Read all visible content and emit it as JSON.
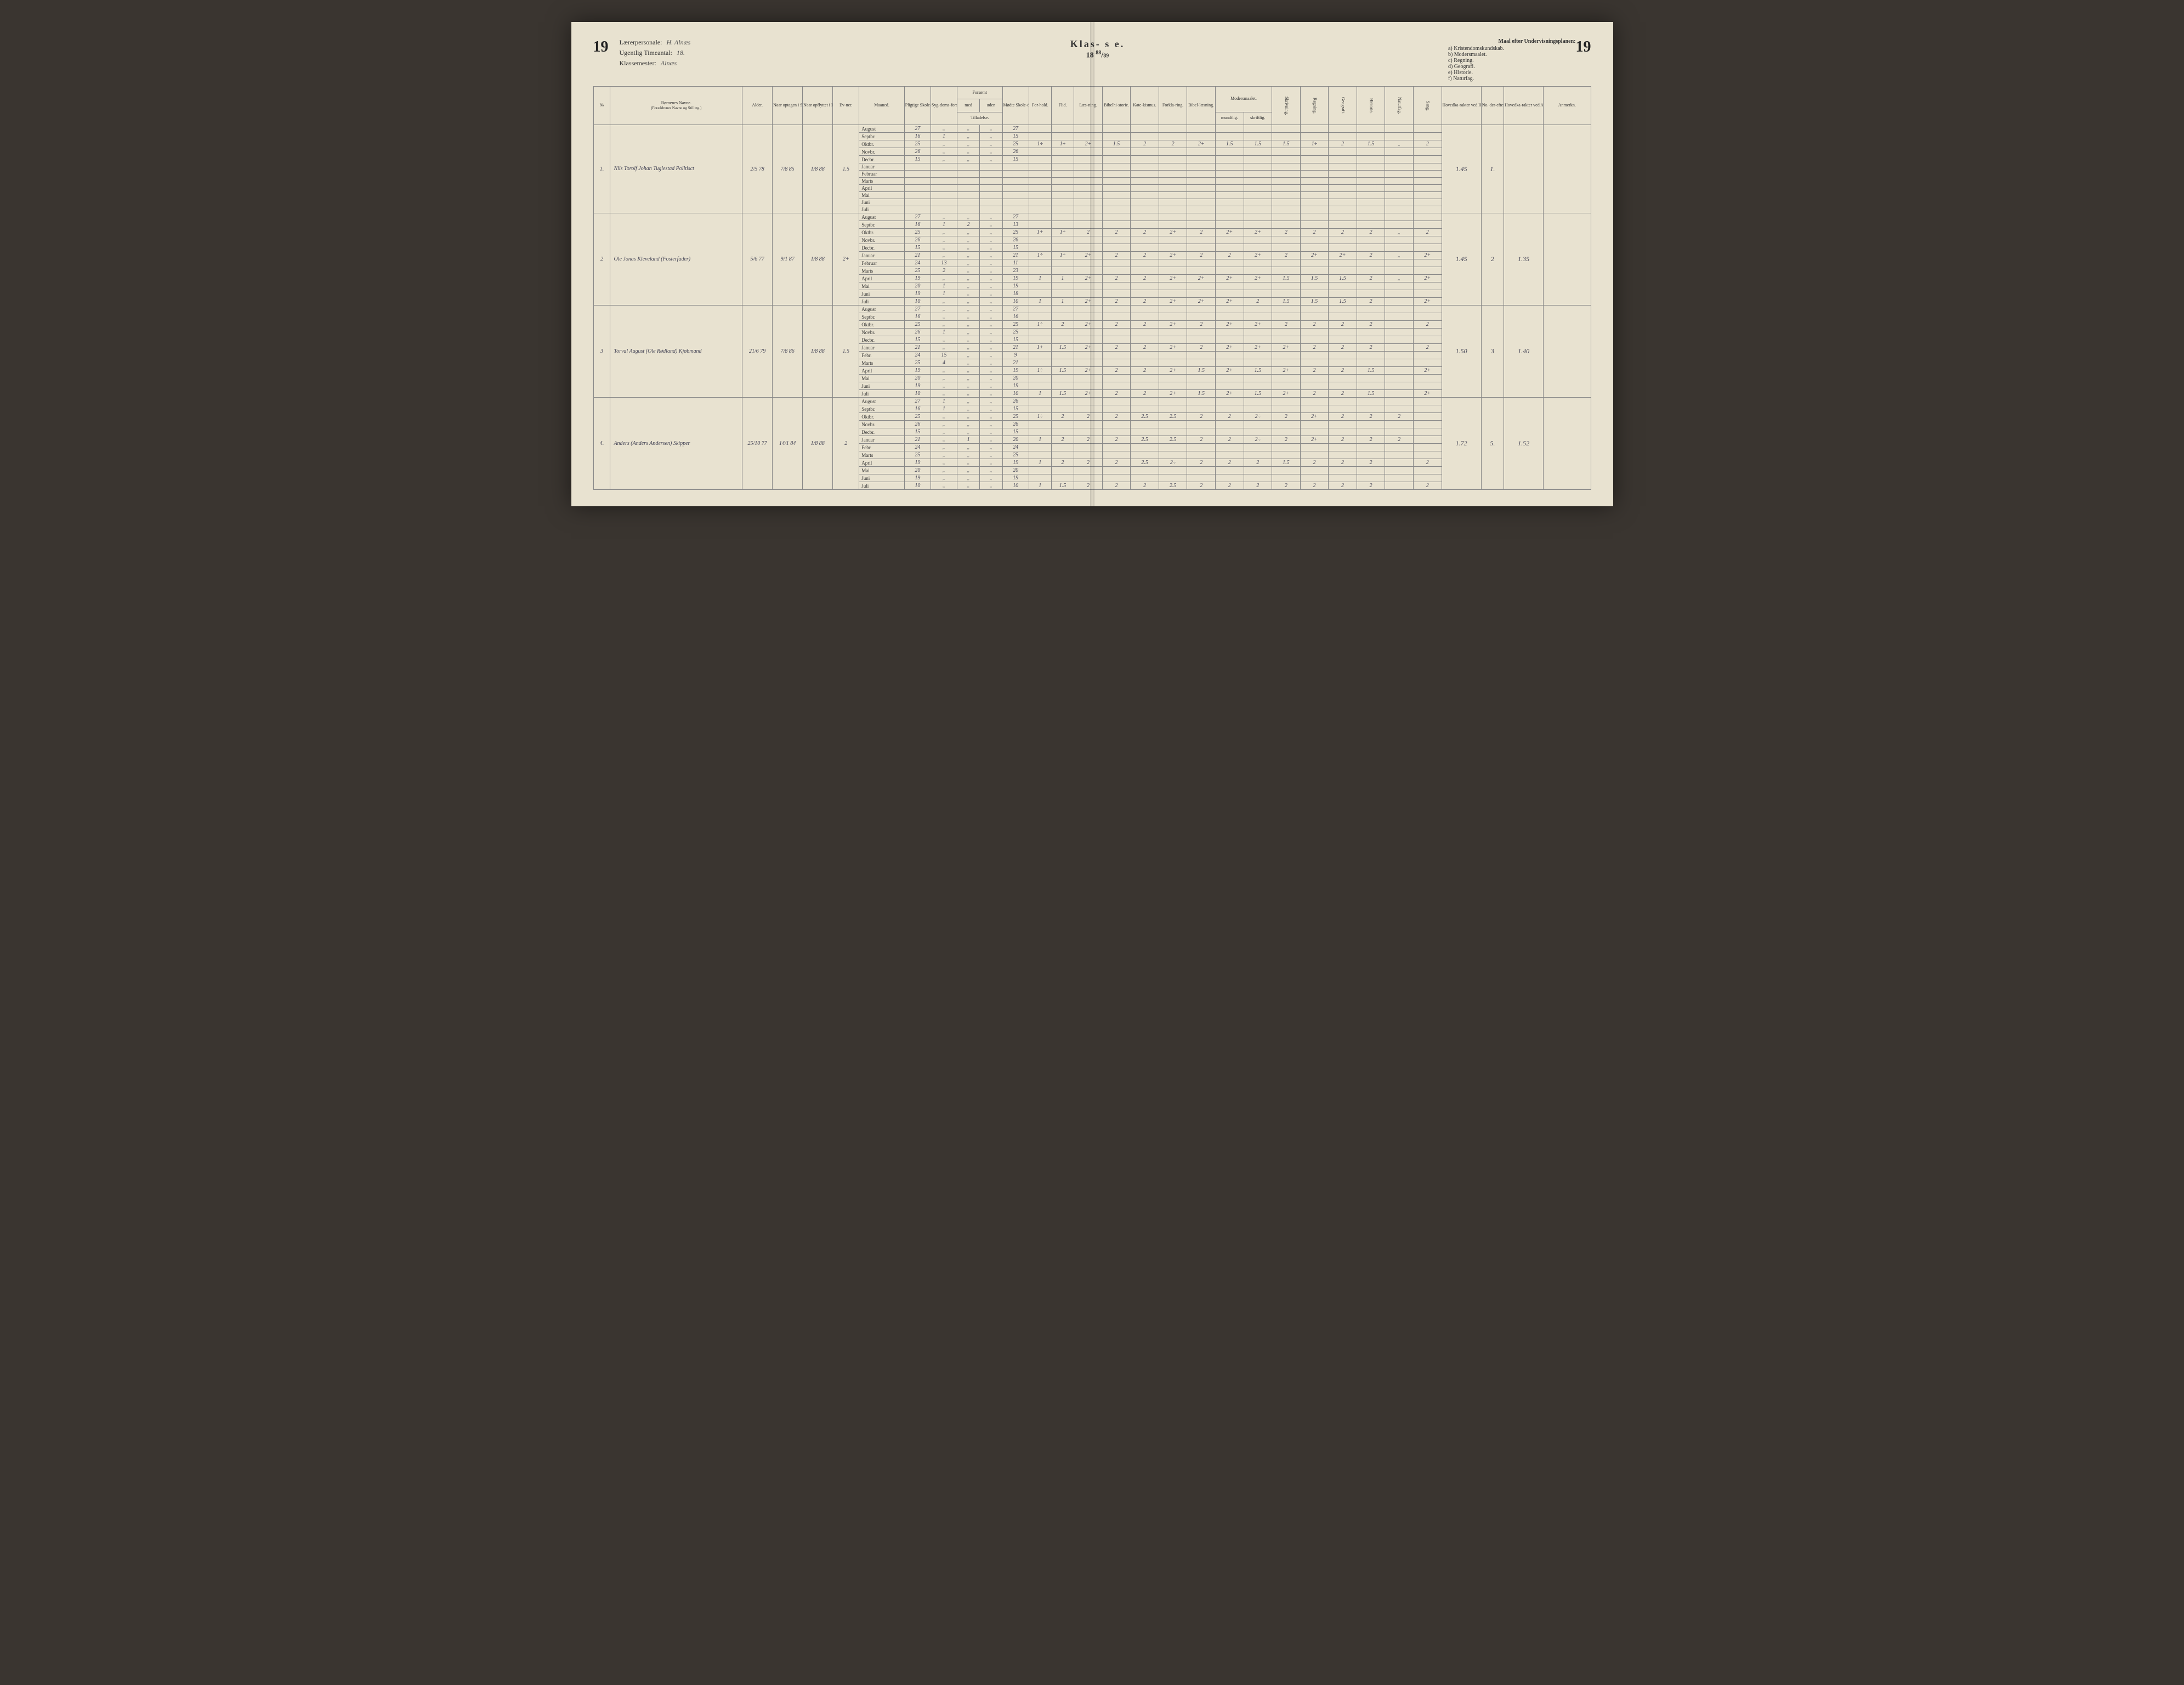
{
  "page_number_left": "19",
  "page_number_right": "19",
  "teacher_label": "Lærerpersonale:",
  "teacher_value": "H. Alnæs",
  "hours_label": "Ugentlig Timeantal:",
  "hours_value": "18.",
  "master_label": "Klassemester:",
  "master_value": "Alnæs",
  "klasse_label": "Klas-    s e.",
  "year_prefix": "18",
  "year_frac_top": "88",
  "year_frac_bot": "89",
  "maal_title": "Maal efter Undervisningsplanen:",
  "maal_items": [
    "a) Kristendomskundskab.",
    "b) Modersmaalet.",
    "c) Regning.",
    "d) Geografi.",
    "e) Historie.",
    "f) Naturfag."
  ],
  "headers": {
    "no": "№",
    "name": "Børnenes Navne.",
    "name_sub": "(Forældrenes Navne og Stilling.)",
    "alder": "Alder.",
    "naar1": "Naar optagen i Skolen.",
    "naar2": "Naar opflyttet i Klassen.",
    "evner": "Ev-ner.",
    "maaned": "Maaned.",
    "pligtige": "Pligtige Skole-dage.",
    "syg": "Syg-doms-forsøm-melser.",
    "forsomt": "Forsømt",
    "med": "med",
    "uden": "uden",
    "tilladelse": "Tilladelse.",
    "modte": "Mødte Skole-dage.",
    "forhold": "For-hold.",
    "flid": "Flid.",
    "laesning": "Læs-ning.",
    "bibelhist": "Bibelhi-storie.",
    "katekismus": "Kate-kismus.",
    "forklaring": "Forkla-ring.",
    "bibellaes": "Bibel-læsning.",
    "modersmaalet": "Modersmaalet.",
    "mundtlig": "mundtlig.",
    "skriftlig": "skriftlig.",
    "skrivning": "Skrivning.",
    "regning": "Regning.",
    "geografi": "Geografi.",
    "historie": "Historie.",
    "naturfag": "Naturfag.",
    "sang": "Sang.",
    "hoved1": "Hovedka-rakter ved Halvaars-eksamen.",
    "noeft": "No. der-efter.",
    "hoved2": "Hovedka-rakter ved Aarseksa-men.",
    "anmerkn": "Anmerkn."
  },
  "months": [
    "August",
    "Septbr.",
    "Oktbr.",
    "Novbr.",
    "Decbr.",
    "Januar",
    "Februar",
    "Marts",
    "April",
    "Mai",
    "Juni",
    "Juli"
  ],
  "months_s3": [
    "August",
    "Septbr.",
    "Oktbr.",
    "Novbr.",
    "Decbr.",
    "Januar",
    "Febr.",
    "Marts",
    "April",
    "Mai",
    "Juni",
    "Juli"
  ],
  "months_s4": [
    "August",
    "Septbr.",
    "Oktbr.",
    "Novbr.",
    "Decbr.",
    "Januar",
    "Febr",
    "Marts",
    "April",
    "Mai",
    "Juni",
    "Juli"
  ],
  "students": [
    {
      "no": "1.",
      "name": "Nils Torolf Johan Tuglestad Politisct",
      "alder": "2/5 78",
      "naar1": "7/8 85",
      "naar2": "1/8 88",
      "evner": "1.5",
      "hoved1": "1.45",
      "noeft": "1.",
      "hoved2": "",
      "rows": [
        {
          "m": "August",
          "pl": "27",
          "syg": "„",
          "med": "„",
          "uden": "„",
          "mo": "27"
        },
        {
          "m": "Septbr.",
          "pl": "16",
          "syg": "1",
          "med": "„",
          "uden": "„",
          "mo": "15"
        },
        {
          "m": "Oktbr.",
          "pl": "25",
          "syg": "„",
          "med": "„",
          "uden": "„",
          "mo": "25",
          "fh": "1÷",
          "fl": "1÷",
          "g": [
            "2+",
            "1.5",
            "2",
            "2",
            "2+",
            "1.5",
            "1.5",
            "1.5",
            "1÷",
            "2",
            "1.5",
            "„",
            "2"
          ]
        },
        {
          "m": "Novbr.",
          "pl": "26",
          "syg": "„",
          "med": "„",
          "uden": "„",
          "mo": "26"
        },
        {
          "m": "Decbr.",
          "pl": "15",
          "syg": "„",
          "med": "„",
          "uden": "„",
          "mo": "15"
        },
        {
          "m": "Januar"
        },
        {
          "m": "Februar"
        },
        {
          "m": "Marts"
        },
        {
          "m": "April"
        },
        {
          "m": "Mai"
        },
        {
          "m": "Juni"
        },
        {
          "m": "Juli"
        }
      ]
    },
    {
      "no": "2",
      "name": "Ole Jonas Kleveland (Fosterfader)",
      "alder": "5/6 77",
      "naar1": "9/1 87",
      "naar2": "1/8 88",
      "evner": "2+",
      "hoved1": "1.45",
      "noeft": "2",
      "hoved2": "1.35",
      "rows": [
        {
          "m": "August",
          "pl": "27",
          "syg": "„",
          "med": "„",
          "uden": "„",
          "mo": "27"
        },
        {
          "m": "Septbr.",
          "pl": "16",
          "syg": "1",
          "med": "2",
          "uden": "„",
          "mo": "13"
        },
        {
          "m": "Oktbr.",
          "pl": "25",
          "syg": "„",
          "med": "„",
          "uden": "„",
          "mo": "25",
          "fh": "1+",
          "fl": "1÷",
          "g": [
            "2",
            "2",
            "2",
            "2+",
            "2",
            "2+",
            "2+",
            "2",
            "2",
            "2",
            "2",
            "„",
            "2"
          ]
        },
        {
          "m": "Novbr.",
          "pl": "26",
          "syg": "„",
          "med": "„",
          "uden": "„",
          "mo": "26"
        },
        {
          "m": "Decbr.",
          "pl": "15",
          "syg": "„",
          "med": "„",
          "uden": "„",
          "mo": "15"
        },
        {
          "m": "Januar",
          "pl": "21",
          "syg": "„",
          "med": "„",
          "uden": "„",
          "mo": "21",
          "fh": "1÷",
          "fl": "1÷",
          "g": [
            "2+",
            "2",
            "2",
            "2+",
            "2",
            "2",
            "2+",
            "2",
            "2+",
            "2+",
            "2",
            "„",
            "2+"
          ]
        },
        {
          "m": "Februar",
          "pl": "24",
          "syg": "13",
          "med": "„",
          "uden": "„",
          "mo": "11"
        },
        {
          "m": "Marts",
          "pl": "25",
          "syg": "2",
          "med": "„",
          "uden": "„",
          "mo": "23"
        },
        {
          "m": "April",
          "pl": "19",
          "syg": "„",
          "med": "„",
          "uden": "„",
          "mo": "19",
          "fh": "1",
          "fl": "1",
          "g": [
            "2+",
            "2",
            "2",
            "2+",
            "2+",
            "2+",
            "2+",
            "1.5",
            "1.5",
            "1.5",
            "2",
            "„",
            "2+"
          ]
        },
        {
          "m": "Mai",
          "pl": "20",
          "syg": "1",
          "med": "„",
          "uden": "„",
          "mo": "19"
        },
        {
          "m": "Juni",
          "pl": "19",
          "syg": "1",
          "med": "„",
          "uden": "„",
          "mo": "18"
        },
        {
          "m": "Juli",
          "pl": "10",
          "syg": "„",
          "med": "„",
          "uden": "„",
          "mo": "10",
          "fh": "1",
          "fl": "1",
          "g": [
            "2+",
            "2",
            "2",
            "2+",
            "2+",
            "2+",
            "2",
            "1.5",
            "1.5",
            "1.5",
            "2",
            "",
            "2+"
          ]
        }
      ]
    },
    {
      "no": "3",
      "name": "Torval August (Ole Rødland) Kjøbmand",
      "alder": "21/6 79",
      "naar1": "7/8 86",
      "naar2": "1/8 88",
      "evner": "1.5",
      "hoved1": "1.50",
      "noeft": "3",
      "hoved2": "1.40",
      "rows": [
        {
          "m": "August",
          "pl": "27",
          "syg": "„",
          "med": "„",
          "uden": "„",
          "mo": "27"
        },
        {
          "m": "Septbr.",
          "pl": "16",
          "syg": "„",
          "med": "„",
          "uden": "„",
          "mo": "16"
        },
        {
          "m": "Oktbr.",
          "pl": "25",
          "syg": "„",
          "med": "„",
          "uden": "„",
          "mo": "25",
          "fh": "1÷",
          "fl": "2",
          "g": [
            "2+",
            "2",
            "2",
            "2+",
            "2",
            "2+",
            "2+",
            "2",
            "2",
            "2",
            "2",
            "",
            "2"
          ]
        },
        {
          "m": "Novbr.",
          "pl": "26",
          "syg": "1",
          "med": "„",
          "uden": "„",
          "mo": "25"
        },
        {
          "m": "Decbr.",
          "pl": "15",
          "syg": "„",
          "med": "„",
          "uden": "„",
          "mo": "15"
        },
        {
          "m": "Januar",
          "pl": "21",
          "syg": "„",
          "med": "„",
          "uden": "„",
          "mo": "21",
          "fh": "1+",
          "fl": "1.5",
          "g": [
            "2+",
            "2",
            "2",
            "2+",
            "2",
            "2+",
            "2+",
            "2+",
            "2",
            "2",
            "2",
            "",
            "2"
          ]
        },
        {
          "m": "Febr.",
          "pl": "24",
          "syg": "15",
          "med": "„",
          "uden": "„",
          "mo": "9"
        },
        {
          "m": "Marts",
          "pl": "25",
          "syg": "4",
          "med": "„",
          "uden": "„",
          "mo": "21"
        },
        {
          "m": "April",
          "pl": "19",
          "syg": "„",
          "med": "„",
          "uden": "„",
          "mo": "19",
          "fh": "1÷",
          "fl": "1.5",
          "g": [
            "2+",
            "2",
            "2",
            "2+",
            "1.5",
            "2+",
            "1.5",
            "2+",
            "2",
            "2",
            "1.5",
            "",
            "2+"
          ]
        },
        {
          "m": "Mai",
          "pl": "20",
          "syg": "„",
          "med": "„",
          "uden": "„",
          "mo": "20"
        },
        {
          "m": "Juni",
          "pl": "19",
          "syg": "„",
          "med": "„",
          "uden": "„",
          "mo": "19"
        },
        {
          "m": "Juli",
          "pl": "10",
          "syg": "„",
          "med": "„",
          "uden": "„",
          "mo": "10",
          "fh": "1",
          "fl": "1.5",
          "g": [
            "2+",
            "2",
            "2",
            "2+",
            "1.5",
            "2+",
            "1.5",
            "2+",
            "2",
            "2",
            "1.5",
            "",
            "2+"
          ]
        }
      ]
    },
    {
      "no": "4.",
      "name": "Anders (Anders Andersen) Skipper",
      "alder": "25/10 77",
      "naar1": "14/1 84",
      "naar2": "1/8 88",
      "evner": "2",
      "hoved1": "1.72",
      "noeft": "5.",
      "hoved2": "1.52",
      "rows": [
        {
          "m": "August",
          "pl": "27",
          "syg": "1",
          "med": "„",
          "uden": "„",
          "mo": "26"
        },
        {
          "m": "Septbr.",
          "pl": "16",
          "syg": "1",
          "med": "„",
          "uden": "„",
          "mo": "15"
        },
        {
          "m": "Oktbr.",
          "pl": "25",
          "syg": "„",
          "med": "„",
          "uden": "„",
          "mo": "25",
          "fh": "1÷",
          "fl": "2",
          "g": [
            "2",
            "2",
            "2.5",
            "2.5",
            "2",
            "2",
            "2÷",
            "2",
            "2+",
            "2",
            "2",
            "2",
            "",
            "2"
          ]
        },
        {
          "m": "Novbr.",
          "pl": "26",
          "syg": "„",
          "med": "„",
          "uden": "„",
          "mo": "26"
        },
        {
          "m": "Decbr.",
          "pl": "15",
          "syg": "„",
          "med": "„",
          "uden": "„",
          "mo": "15"
        },
        {
          "m": "Januar",
          "pl": "21",
          "syg": "„",
          "med": "1",
          "uden": "„",
          "mo": "20",
          "fh": "1",
          "fl": "2",
          "g": [
            "2",
            "2",
            "2.5",
            "2.5",
            "2",
            "2",
            "2÷",
            "2",
            "2+",
            "2",
            "2",
            "2",
            "",
            "2"
          ]
        },
        {
          "m": "Febr",
          "pl": "24",
          "syg": "„",
          "med": "„",
          "uden": "„",
          "mo": "24"
        },
        {
          "m": "Marts",
          "pl": "25",
          "syg": "„",
          "med": "„",
          "uden": "„",
          "mo": "25"
        },
        {
          "m": "April",
          "pl": "19",
          "syg": "„",
          "med": "„",
          "uden": "„",
          "mo": "19",
          "fh": "1",
          "fl": "2",
          "g": [
            "2",
            "2",
            "2.5",
            "2÷",
            "2",
            "2",
            "2",
            "1.5",
            "2",
            "2",
            "2",
            "",
            "2"
          ]
        },
        {
          "m": "Mai",
          "pl": "20",
          "syg": "„",
          "med": "„",
          "uden": "„",
          "mo": "20"
        },
        {
          "m": "Juni",
          "pl": "19",
          "syg": "„",
          "med": "„",
          "uden": "„",
          "mo": "19"
        },
        {
          "m": "Juli",
          "pl": "10",
          "syg": "„",
          "med": "„",
          "uden": "„",
          "mo": "10",
          "fh": "1",
          "fl": "1.5",
          "g": [
            "2",
            "2",
            "2",
            "2.5",
            "2",
            "2",
            "2",
            "2",
            "2",
            "2",
            "2",
            "",
            "2"
          ]
        }
      ]
    }
  ]
}
